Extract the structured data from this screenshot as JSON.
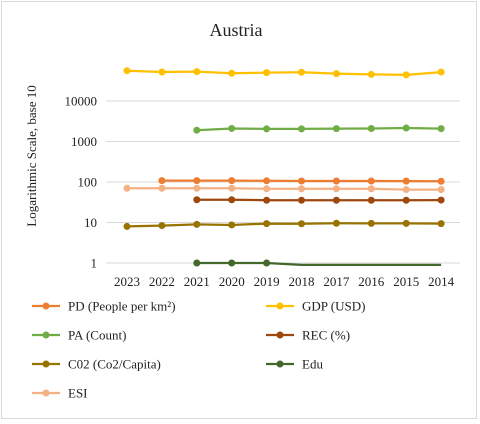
{
  "chart_data": {
    "type": "line",
    "title": "Austria",
    "ylabel": "Logarithmic Scale, base 10",
    "xlabel": "",
    "y_scale": "log10",
    "ylim": [
      1,
      100000
    ],
    "y_ticks": [
      1,
      10,
      100,
      1000,
      10000
    ],
    "y_tick_labels": [
      "1",
      "10",
      "100",
      "1000",
      "10000"
    ],
    "grid": true,
    "legend_position": "bottom",
    "x": [
      "2023",
      "2022",
      "2021",
      "2020",
      "2019",
      "2018",
      "2017",
      "2016",
      "2015",
      "2014"
    ],
    "series": [
      {
        "name": "PD (People per km²)",
        "color": "#ED7D31",
        "values": [
          null,
          108,
          108,
          108,
          107,
          106,
          106,
          106,
          105,
          104
        ]
      },
      {
        "name": "GDP (USD)",
        "color": "#FFC000",
        "values": [
          56000,
          52000,
          53000,
          48500,
          50200,
          51200,
          47400,
          45300,
          44200,
          51800
        ]
      },
      {
        "name": "PA (Count)",
        "color": "#70AD47",
        "values": [
          null,
          null,
          1900,
          2100,
          2050,
          2050,
          2080,
          2090,
          2150,
          2080
        ]
      },
      {
        "name": "REC (%)",
        "color": "#9E480E",
        "values": [
          null,
          null,
          36.5,
          36.5,
          35.5,
          35.5,
          35.5,
          35.5,
          35.5,
          35.8
        ]
      },
      {
        "name": "C02 (Co2/Capita)",
        "color": "#997300",
        "values": [
          8.0,
          8.4,
          9.0,
          8.7,
          9.4,
          9.3,
          9.6,
          9.5,
          9.5,
          9.4
        ]
      },
      {
        "name": "Edu",
        "color": "#43682B",
        "values": [
          null,
          null,
          1.0,
          1.0,
          1.0,
          0.9,
          0.9,
          0.9,
          0.9,
          0.9
        ]
      },
      {
        "name": "ESI",
        "color": "#F4B183",
        "values": [
          70,
          70,
          70,
          70,
          68,
          68,
          68,
          68,
          65,
          65
        ]
      }
    ]
  }
}
